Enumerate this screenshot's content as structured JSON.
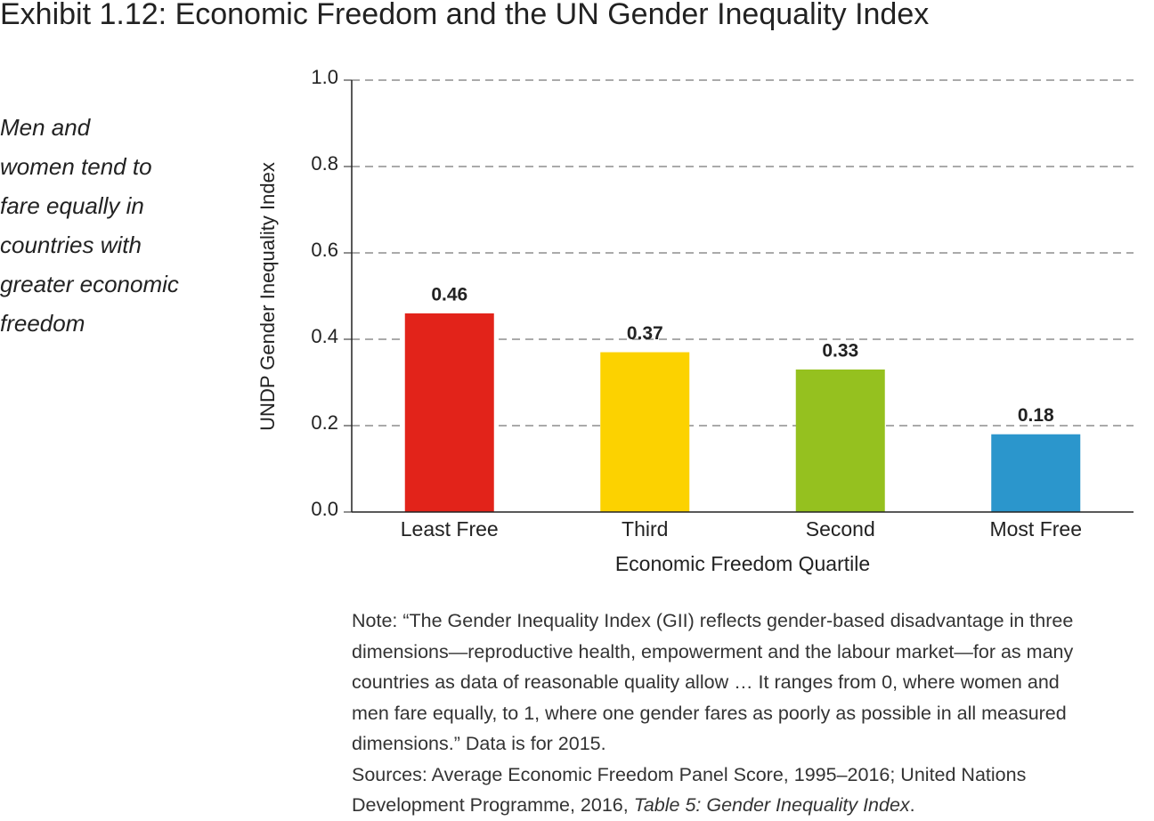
{
  "chart_data": {
    "type": "bar",
    "title": "Exhibit 1.12: Economic Freedom and the UN Gender Inequality Index",
    "side_text": [
      "Men and",
      "women tend to",
      "fare equally in",
      "countries with",
      "greater economic",
      "freedom"
    ],
    "ylabel": "UNDP Gender Inequality Index",
    "xlabel": "Economic Freedom Quartile",
    "categories": [
      "Least Free",
      "Third",
      "Second",
      "Most Free"
    ],
    "values": [
      0.46,
      0.37,
      0.33,
      0.18
    ],
    "colors": [
      "#e2231a",
      "#fcd200",
      "#95c11f",
      "#2b96cc"
    ],
    "ylim": [
      0,
      1
    ],
    "yticks": [
      {
        "value": 0,
        "label": "0.0"
      },
      0.2,
      0.4,
      0.6,
      0.8,
      {
        "value": 1,
        "label": "1.0"
      }
    ],
    "grid": true
  },
  "notes": {
    "note": [
      "Note: “The Gender Inequality Index (GII) reflects gender-based disadvantage in three",
      "dimensions—reproductive health, empowerment and the labour market—for as many",
      "countries as data of reasonable quality allow … It ranges from 0, where women and",
      "men fare equally, to 1, where one gender fares as poorly as possible in all measured",
      "dimensions.” Data is for 2015."
    ],
    "sources": [
      "Sources: Average Economic Freedom Panel Score, 1995–2016; United Nations",
      "Development Programme, 2016, "
    ],
    "sources_italic": "Table 5: Gender Inequality Index",
    "sources_end": "."
  }
}
